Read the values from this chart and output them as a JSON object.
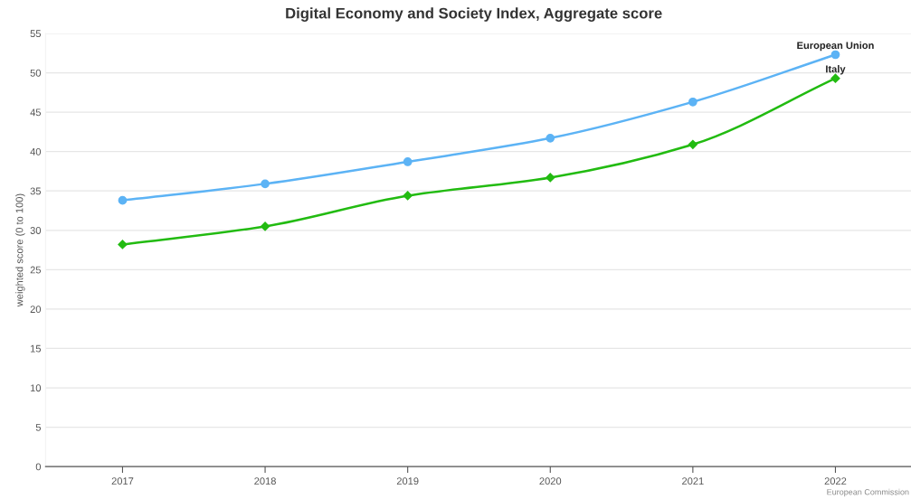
{
  "chart_data": {
    "type": "line",
    "title": "Digital Economy and Society Index, Aggregate score",
    "ylabel": "weighted score (0 to 100)",
    "categories": [
      "2017",
      "2018",
      "2019",
      "2020",
      "2021",
      "2022"
    ],
    "series": [
      {
        "name": "European Union",
        "color": "#5cb3f5",
        "marker": "circle",
        "values": [
          33.8,
          35.9,
          38.7,
          41.7,
          46.3,
          52.3
        ]
      },
      {
        "name": "Italy",
        "color": "#22bb11",
        "marker": "diamond",
        "values": [
          28.2,
          30.5,
          34.4,
          36.7,
          40.9,
          49.3
        ]
      }
    ],
    "ylim": [
      0,
      55
    ],
    "yticks": [
      0,
      5,
      10,
      15,
      20,
      25,
      30,
      35,
      40,
      45,
      50,
      55
    ],
    "grid": "y",
    "legend": false,
    "line_style": "solid",
    "annotations": [
      "European Commission"
    ]
  }
}
